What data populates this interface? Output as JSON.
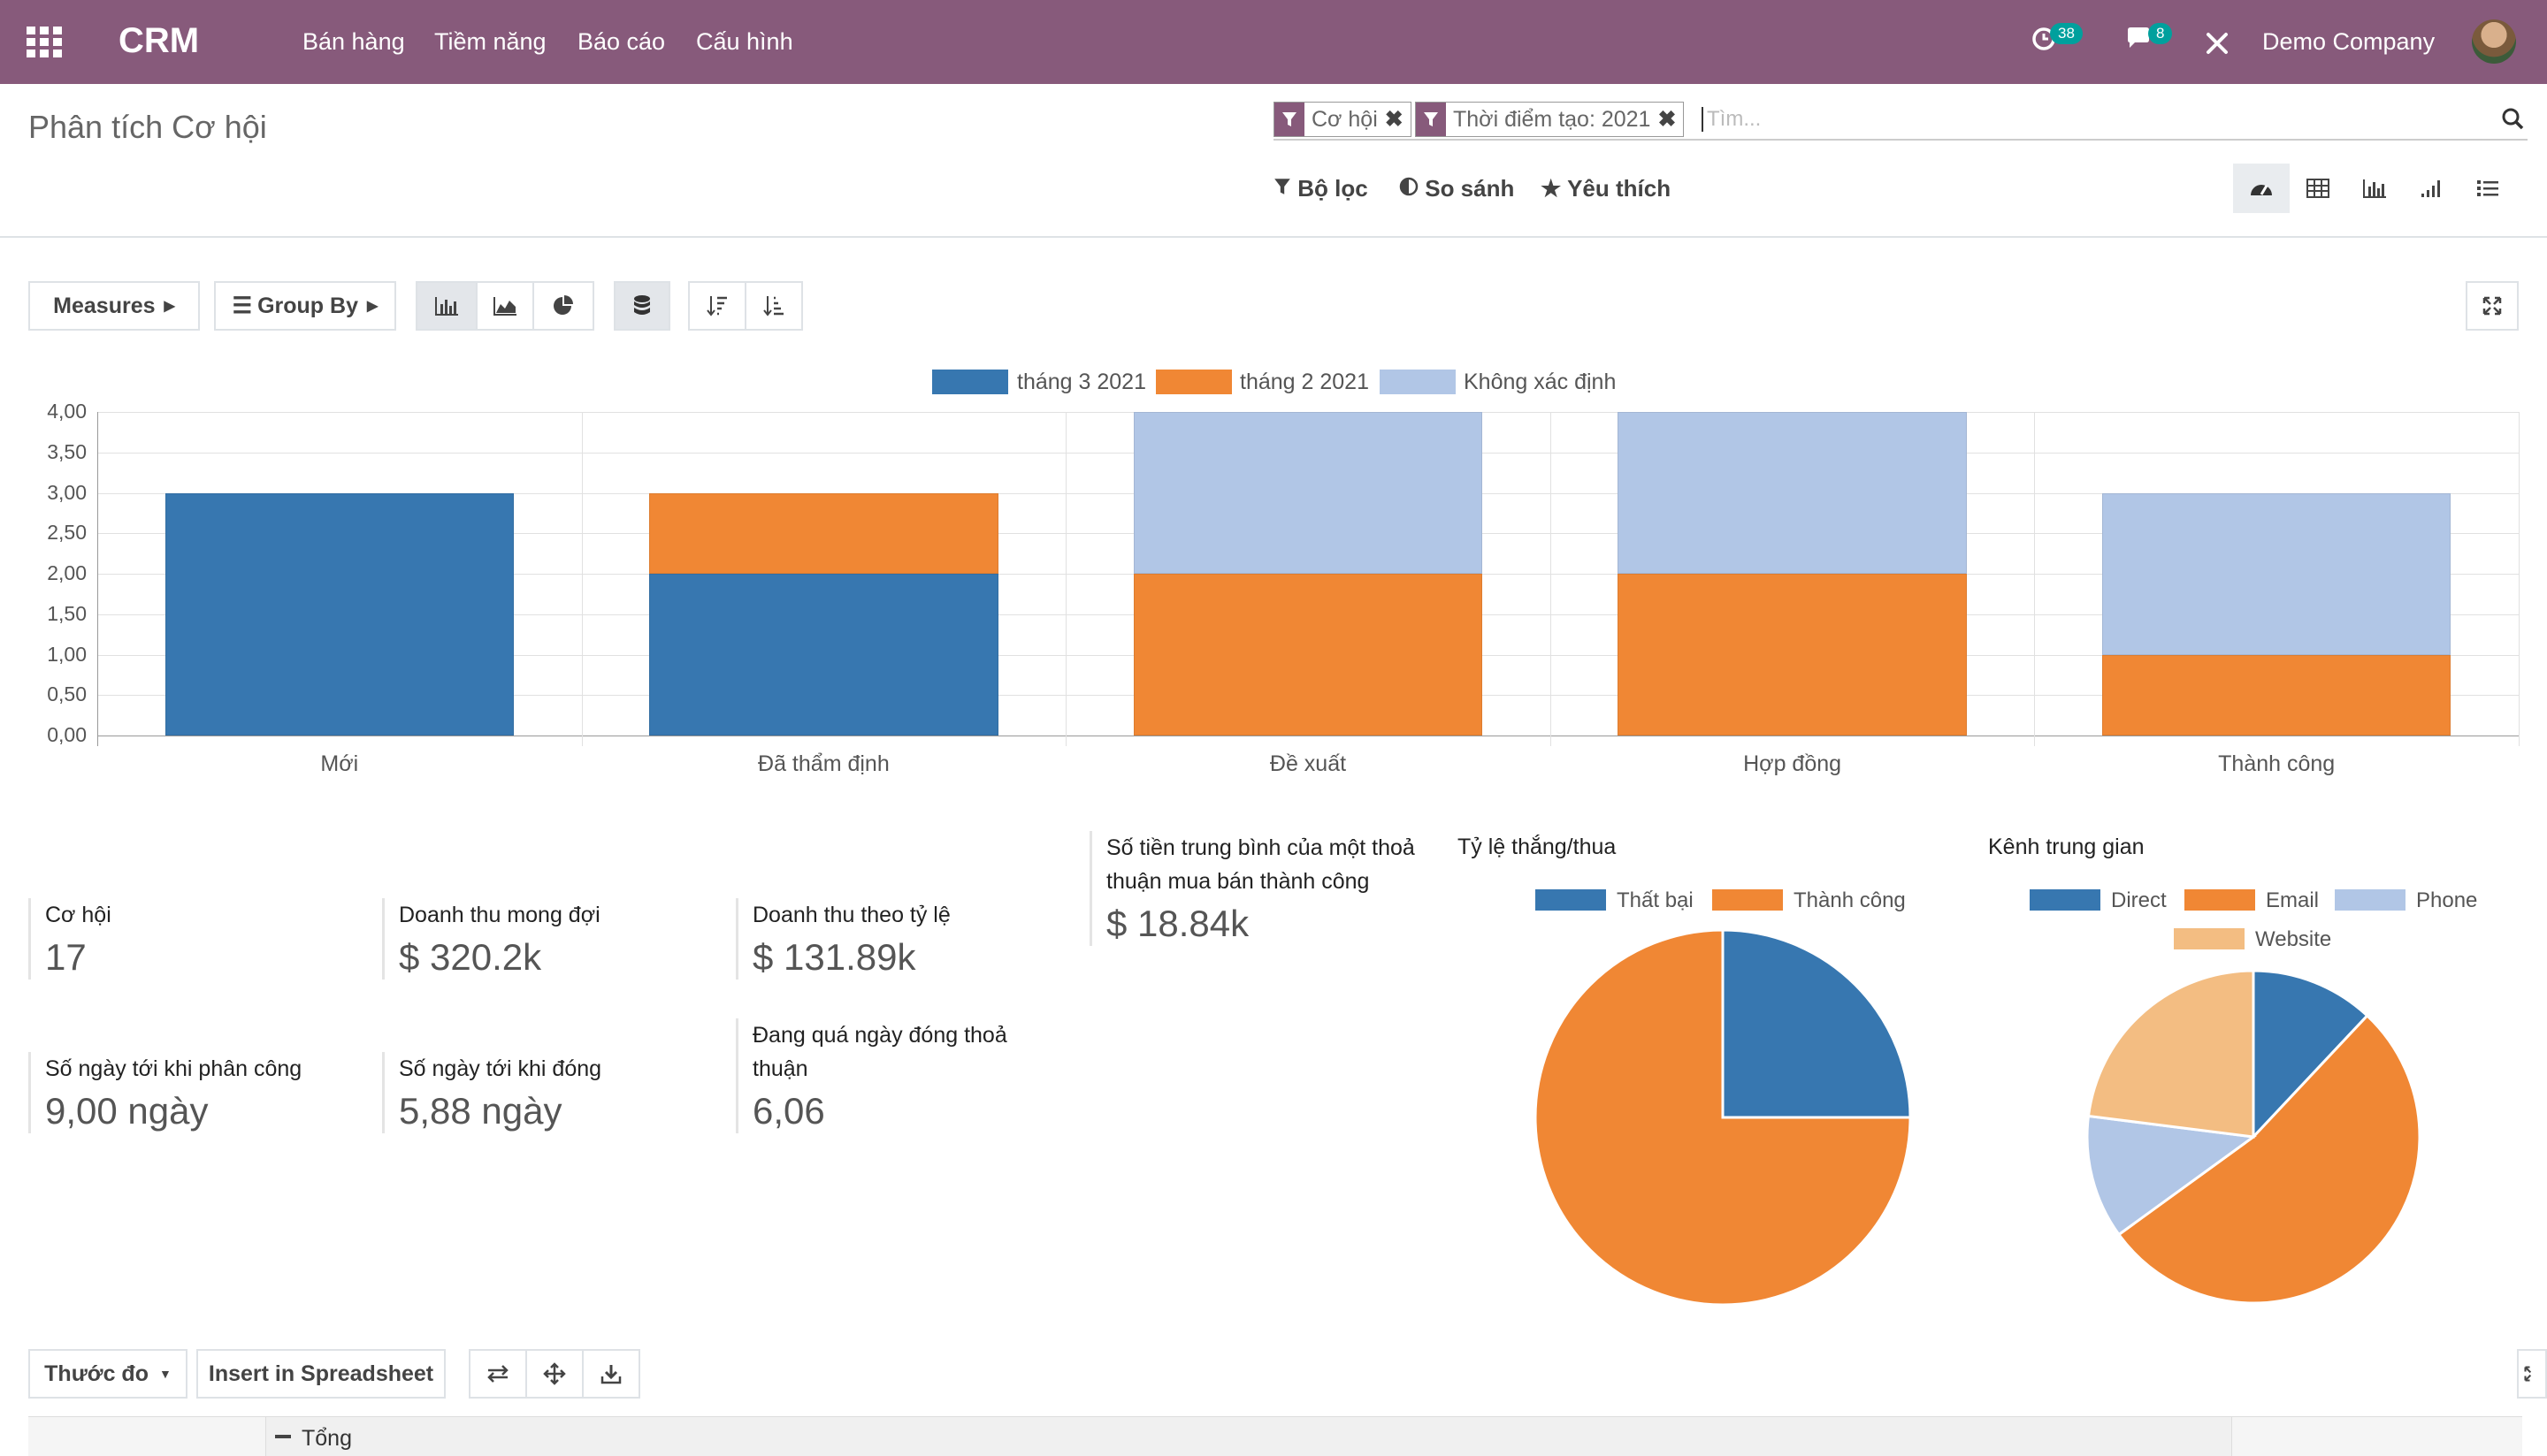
{
  "navbar": {
    "app_name": "CRM",
    "menu": [
      "Bán hàng",
      "Tiềm năng",
      "Báo cáo",
      "Cấu hình"
    ],
    "activity_count": "38",
    "message_count": "8",
    "company": "Demo Company",
    "icons": [
      "apps-grid-icon",
      "clock-activity-icon",
      "chat-icon",
      "tools-icon"
    ]
  },
  "control_panel": {
    "title": "Phân tích Cơ hội",
    "facets": [
      "Cơ hội",
      "Thời điểm tạo: 2021"
    ],
    "search_placeholder": "Tìm...",
    "filter_label": "Bộ lọc",
    "compare_label": "So sánh",
    "favorites_label": "Yêu thích",
    "views": [
      "dashboard",
      "pivot",
      "graph",
      "cohort",
      "list"
    ],
    "active_view": "dashboard"
  },
  "graph_toolbar": {
    "measures_label": "Measures",
    "groupby_label": "Group By"
  },
  "chart_data": [
    {
      "type": "bar",
      "stacked": true,
      "categories": [
        "Mới",
        "Đã thẩm định",
        "Đề xuất",
        "Hợp đồng",
        "Thành công"
      ],
      "series": [
        {
          "name": "tháng 3 2021",
          "color": "#3777b0",
          "values": [
            3,
            2,
            0,
            0,
            0
          ]
        },
        {
          "name": "tháng 2 2021",
          "color": "#f08734",
          "values": [
            0,
            1,
            2,
            2,
            1
          ]
        },
        {
          "name": "Không xác định",
          "color": "#b1c6e6",
          "values": [
            0,
            0,
            2,
            2,
            2
          ]
        }
      ],
      "yticks": [
        "0,00",
        "0,50",
        "1,00",
        "1,50",
        "2,00",
        "2,50",
        "3,00",
        "3,50",
        "4,00"
      ],
      "ylim": [
        0,
        4
      ],
      "legend": "top-center",
      "grid": true
    },
    {
      "type": "pie",
      "title": "Tỷ lệ thắng/thua",
      "labels": [
        "Thất bại",
        "Thành công"
      ],
      "values": [
        25,
        75
      ],
      "colors": [
        "#3777b0",
        "#f08734"
      ]
    },
    {
      "type": "pie",
      "title": "Kênh trung gian",
      "labels": [
        "Direct",
        "Email",
        "Phone",
        "Website"
      ],
      "values": [
        12,
        53,
        12,
        23
      ],
      "colors": [
        "#3777b0",
        "#f08734",
        "#b1c6e6",
        "#f3bd82"
      ]
    }
  ],
  "kpis": [
    {
      "label": "Cơ hội",
      "value": "17"
    },
    {
      "label": "Doanh thu mong đợi",
      "value": "$ 320.2k"
    },
    {
      "label": "Doanh thu theo tỷ lệ",
      "value": "$ 131.89k"
    },
    {
      "label": "Số tiền trung bình của một thoả thuận mua bán thành công",
      "value": "$ 18.84k"
    },
    {
      "label": "Số ngày tới khi phân công",
      "value": "9,00 ngày"
    },
    {
      "label": "Số ngày tới khi đóng",
      "value": "5,88 ngày"
    },
    {
      "label": "Đang quá ngày đóng thoả thuận",
      "value": "6,06"
    }
  ],
  "pivot": {
    "measure_label": "Thước đo",
    "spreadsheet_label": "Insert in Spreadsheet",
    "total_label": "Tổng"
  }
}
